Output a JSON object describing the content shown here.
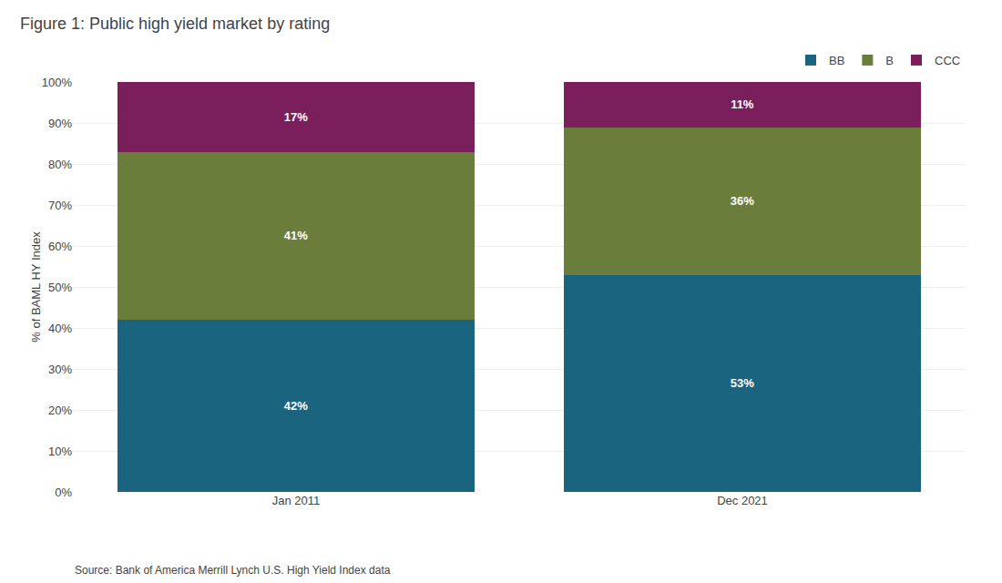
{
  "chart_data": {
    "type": "bar",
    "title": "Figure 1: Public high yield market by rating",
    "categories": [
      "Jan 2011",
      "Dec 2021"
    ],
    "series": [
      {
        "name": "BB",
        "color": "#1a6480",
        "values": [
          42,
          53
        ],
        "value_labels": [
          "42%",
          "53%"
        ]
      },
      {
        "name": "B",
        "color": "#6b7d3a",
        "values": [
          41,
          36
        ],
        "value_labels": [
          "41%",
          "36%"
        ]
      },
      {
        "name": "CCC",
        "color": "#7a1f5c",
        "values": [
          17,
          11
        ],
        "value_labels": [
          "17%",
          "11%"
        ]
      }
    ],
    "ylabel": "% of BAML HY Index",
    "annotations": [
      "Source: Bank of America Merrill Lynch U.S. High Yield Index data"
    ],
    "ylim": [
      0,
      100
    ],
    "yticks": [
      {
        "value": 0,
        "label": "0%"
      },
      {
        "value": 10,
        "label": "10%"
      },
      {
        "value": 20,
        "label": "20%"
      },
      {
        "value": 30,
        "label": "30%"
      },
      {
        "value": 40,
        "label": "40%"
      },
      {
        "value": 50,
        "label": "50%"
      },
      {
        "value": 60,
        "label": "60%"
      },
      {
        "value": 70,
        "label": "70%"
      },
      {
        "value": 80,
        "label": "80%"
      },
      {
        "value": 90,
        "label": "90%"
      },
      {
        "value": 100,
        "label": "100%"
      }
    ],
    "stacked": true,
    "data_labels": true,
    "grid": true,
    "legend": "top right"
  }
}
